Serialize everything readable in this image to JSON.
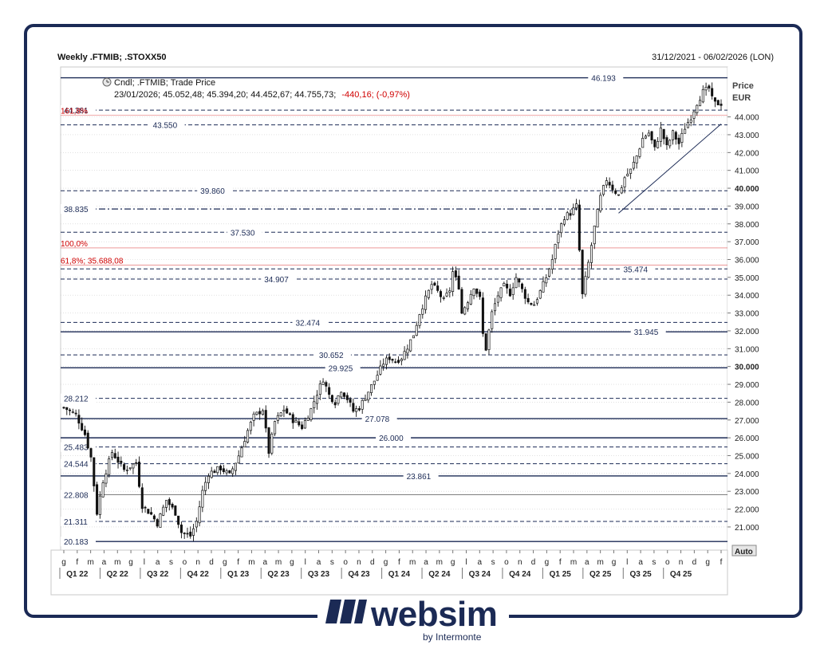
{
  "header": {
    "title": "Weekly .FTMIB; .STOXX50",
    "date_range": "31/12/2021 - 06/02/2026 (LON)"
  },
  "legend": {
    "line1": "Cndl; .FTMIB; Trade Price",
    "line2_values": "23/01/2026; 45.052,48; 45.394,20; 44.452,67; 44.755,73;",
    "line2_change": "-440,16; (-0,97%)"
  },
  "axis": {
    "price_label": "Price",
    "currency_label": "EUR",
    "auto_button": "Auto"
  },
  "brand": {
    "name": "websim",
    "sub": "by Intermonte"
  },
  "colors": {
    "level_line": "#1b2a55",
    "fib_label": "#d00000",
    "candle": "#111111",
    "grid": "#cfcfcf"
  },
  "chart_data": {
    "type": "candlestick",
    "instrument": ".FTMIB",
    "frequency": "Weekly",
    "currency": "EUR",
    "ylim": [
      19700,
      46800
    ],
    "y_ticks": [
      {
        "v": 21000,
        "label": "21.000"
      },
      {
        "v": 22000,
        "label": "22.000"
      },
      {
        "v": 23000,
        "label": "23.000"
      },
      {
        "v": 24000,
        "label": "24.000"
      },
      {
        "v": 25000,
        "label": "25.000"
      },
      {
        "v": 26000,
        "label": "26.000"
      },
      {
        "v": 27000,
        "label": "27.000"
      },
      {
        "v": 28000,
        "label": "28.000"
      },
      {
        "v": 29000,
        "label": "29.000"
      },
      {
        "v": 30000,
        "label": "30.000",
        "bold": true
      },
      {
        "v": 31000,
        "label": "31.000"
      },
      {
        "v": 32000,
        "label": "32.000"
      },
      {
        "v": 33000,
        "label": "33.000"
      },
      {
        "v": 34000,
        "label": "34.000"
      },
      {
        "v": 35000,
        "label": "35.000"
      },
      {
        "v": 36000,
        "label": "36.000"
      },
      {
        "v": 37000,
        "label": "37.000"
      },
      {
        "v": 38000,
        "label": "38.000"
      },
      {
        "v": 39000,
        "label": "39.000"
      },
      {
        "v": 40000,
        "label": "40.000",
        "bold": true
      },
      {
        "v": 41000,
        "label": "41.000"
      },
      {
        "v": 42000,
        "label": "42.000"
      },
      {
        "v": 43000,
        "label": "43.000"
      },
      {
        "v": 44000,
        "label": "44.000"
      }
    ],
    "month_ticks": [
      "g",
      "f",
      "m",
      "a",
      "m",
      "g",
      "l",
      "a",
      "s",
      "o",
      "n",
      "d",
      "g",
      "f",
      "m",
      "a",
      "m",
      "g",
      "l",
      "a",
      "s",
      "o",
      "n",
      "d",
      "g",
      "f",
      "m",
      "a",
      "m",
      "g",
      "l",
      "a",
      "s",
      "o",
      "n",
      "d",
      "g",
      "f",
      "m",
      "a",
      "m",
      "g",
      "l",
      "a",
      "s",
      "o",
      "n",
      "d",
      "g",
      "f"
    ],
    "quarter_labels": [
      "Q1 22",
      "Q2 22",
      "Q3 22",
      "Q4 22",
      "Q1 23",
      "Q2 23",
      "Q3 23",
      "Q4 23",
      "Q1 24",
      "Q2 24",
      "Q3 24",
      "Q4 24",
      "Q1 25",
      "Q2 25",
      "Q3 25",
      "Q4 25"
    ],
    "levels": [
      {
        "value": 46193,
        "label": "46.193",
        "style": "solid",
        "label_side": "right"
      },
      {
        "value": 44381,
        "label": "44.381",
        "style": "dashed",
        "label_side": "left"
      },
      {
        "value": 43550,
        "label": "43.550",
        "style": "dashed",
        "label_side": "mid"
      },
      {
        "value": 39860,
        "label": "39.860",
        "style": "dashed",
        "label_side": "mid"
      },
      {
        "value": 38835,
        "label": "38.835",
        "style": "dashdot",
        "label_side": "left"
      },
      {
        "value": 37530,
        "label": "37.530",
        "style": "dashed",
        "label_side": "mid"
      },
      {
        "value": 35474,
        "label": "35.474",
        "style": "dashed",
        "label_side": "right"
      },
      {
        "value": 34907,
        "label": "34.907",
        "style": "dashed",
        "label_side": "mid"
      },
      {
        "value": 32474,
        "label": "32.474",
        "style": "dashed",
        "label_side": "mid"
      },
      {
        "value": 31945,
        "label": "31.945",
        "style": "solid",
        "label_side": "right"
      },
      {
        "value": 30652,
        "label": "30.652",
        "style": "dashed",
        "label_side": "mid"
      },
      {
        "value": 29925,
        "label": "29.925",
        "style": "solid",
        "label_side": "mid"
      },
      {
        "value": 28212,
        "label": "28.212",
        "style": "dashed",
        "label_side": "left"
      },
      {
        "value": 27078,
        "label": "27.078",
        "style": "solid",
        "label_side": "mid"
      },
      {
        "value": 26000,
        "label": "26.000",
        "style": "solid",
        "label_side": "mid"
      },
      {
        "value": 25483,
        "label": "25.483",
        "style": "dashed",
        "label_side": "left"
      },
      {
        "value": 24544,
        "label": "24.544",
        "style": "dashed",
        "label_side": "left"
      },
      {
        "value": 23861,
        "label": "23.861",
        "style": "solid",
        "label_side": "mid"
      },
      {
        "value": 22808,
        "label": "22.808",
        "style": "thin",
        "label_side": "left"
      },
      {
        "value": 21311,
        "label": "21.311",
        "style": "dashed",
        "label_side": "left"
      },
      {
        "value": 20183,
        "label": "20.183",
        "style": "solid",
        "label_side": "left"
      }
    ],
    "fib_labels": [
      {
        "value": 44100,
        "label": "161,8%"
      },
      {
        "value": 36650,
        "label": "100,0%"
      },
      {
        "value": 35688,
        "label": "61,8%; 35.688,08"
      }
    ],
    "trendline": {
      "start_week": 184,
      "start_value": 38600,
      "end_week": 218,
      "end_value": 43600
    },
    "series_path": [
      [
        0,
        27700
      ],
      [
        4,
        27300
      ],
      [
        7,
        26200
      ],
      [
        9,
        24900
      ],
      [
        11,
        21800
      ],
      [
        13,
        23600
      ],
      [
        16,
        25200
      ],
      [
        20,
        24200
      ],
      [
        24,
        24600
      ],
      [
        26,
        22200
      ],
      [
        29,
        21700
      ],
      [
        31,
        21200
      ],
      [
        34,
        22500
      ],
      [
        37,
        21800
      ],
      [
        39,
        20700
      ],
      [
        42,
        20500
      ],
      [
        44,
        21300
      ],
      [
        46,
        23000
      ],
      [
        48,
        24000
      ],
      [
        52,
        24300
      ],
      [
        55,
        23900
      ],
      [
        58,
        25000
      ],
      [
        61,
        26400
      ],
      [
        63,
        27200
      ],
      [
        66,
        27600
      ],
      [
        68,
        25200
      ],
      [
        70,
        26900
      ],
      [
        73,
        27600
      ],
      [
        76,
        27000
      ],
      [
        79,
        26600
      ],
      [
        82,
        27600
      ],
      [
        84,
        28500
      ],
      [
        86,
        29300
      ],
      [
        88,
        28400
      ],
      [
        90,
        28000
      ],
      [
        92,
        28700
      ],
      [
        94,
        28200
      ],
      [
        96,
        27500
      ],
      [
        98,
        27700
      ],
      [
        100,
        28300
      ],
      [
        103,
        29200
      ],
      [
        106,
        30200
      ],
      [
        108,
        30500
      ],
      [
        110,
        30300
      ],
      [
        112,
        30500
      ],
      [
        114,
        31100
      ],
      [
        116,
        31800
      ],
      [
        118,
        33000
      ],
      [
        120,
        33800
      ],
      [
        122,
        34600
      ],
      [
        124,
        34200
      ],
      [
        126,
        33700
      ],
      [
        128,
        34300
      ],
      [
        129,
        35300
      ],
      [
        131,
        34500
      ],
      [
        132,
        33000
      ],
      [
        134,
        33700
      ],
      [
        136,
        34500
      ],
      [
        138,
        33800
      ],
      [
        139,
        31800
      ],
      [
        140,
        31000
      ],
      [
        142,
        33000
      ],
      [
        144,
        34000
      ],
      [
        146,
        34500
      ],
      [
        148,
        34100
      ],
      [
        150,
        35000
      ],
      [
        152,
        34300
      ],
      [
        154,
        33600
      ],
      [
        156,
        33500
      ],
      [
        158,
        34200
      ],
      [
        160,
        35000
      ],
      [
        162,
        36000
      ],
      [
        164,
        37500
      ],
      [
        166,
        38400
      ],
      [
        168,
        38600
      ],
      [
        170,
        39000
      ],
      [
        171,
        36500
      ],
      [
        172,
        34000
      ],
      [
        174,
        35800
      ],
      [
        176,
        37800
      ],
      [
        178,
        39500
      ],
      [
        180,
        40500
      ],
      [
        182,
        40000
      ],
      [
        184,
        39600
      ],
      [
        186,
        40600
      ],
      [
        188,
        41000
      ],
      [
        190,
        41800
      ],
      [
        192,
        42800
      ],
      [
        194,
        43100
      ],
      [
        196,
        42200
      ],
      [
        198,
        43300
      ],
      [
        200,
        42300
      ],
      [
        202,
        43100
      ],
      [
        204,
        42500
      ],
      [
        206,
        43400
      ],
      [
        208,
        44000
      ],
      [
        210,
        44800
      ],
      [
        212,
        45400
      ],
      [
        214,
        45600
      ],
      [
        215,
        45000
      ],
      [
        216,
        44755
      ]
    ]
  }
}
